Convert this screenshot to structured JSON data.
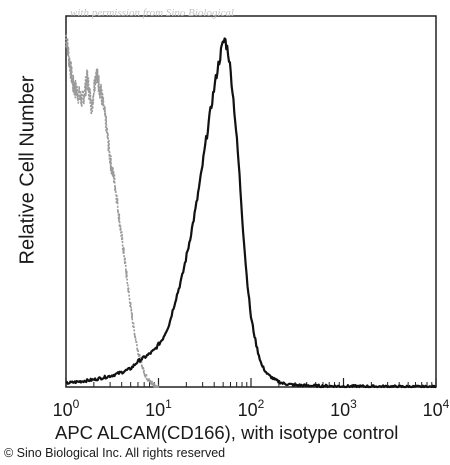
{
  "watermark": "with permission from Sino Biological",
  "copyright": "© Sino Biological Inc. All rights reserved",
  "chart_data": {
    "type": "line",
    "title": "",
    "xlabel": "APC ALCAM(CD166), with isotype control",
    "ylabel": "Relative Cell Number",
    "xscale": "log",
    "xlim": [
      1,
      10000
    ],
    "ylim": [
      0,
      100
    ],
    "xticks": [
      {
        "value": 1,
        "base": "10",
        "exp": "0"
      },
      {
        "value": 10,
        "base": "10",
        "exp": "1"
      },
      {
        "value": 100,
        "base": "10",
        "exp": "2"
      },
      {
        "value": 1000,
        "base": "10",
        "exp": "3"
      },
      {
        "value": 10000,
        "base": "10",
        "exp": "4"
      }
    ],
    "grid": false,
    "legend": "none",
    "series": [
      {
        "role": "isotype control",
        "color": "#9a9a9a",
        "x": [
          1.0,
          1.1,
          1.2,
          1.35,
          1.5,
          1.7,
          1.9,
          2.1,
          2.4,
          2.7,
          3.0,
          3.4,
          3.8,
          4.3,
          4.8,
          5.4,
          6.1,
          7.0,
          8.0,
          9.0,
          10.0
        ],
        "y": [
          96,
          88,
          82,
          80,
          78,
          84,
          76,
          86,
          80,
          72,
          62,
          55,
          45,
          35,
          25,
          16,
          9,
          4,
          1.5,
          0.5,
          0
        ]
      },
      {
        "role": "ALCAM(CD166)",
        "color": "#111111",
        "x": [
          1.0,
          2.0,
          3.0,
          4.0,
          5.0,
          6.0,
          7.5,
          9.0,
          11,
          13,
          15,
          18,
          21,
          25,
          29,
          33,
          38,
          43,
          48,
          52,
          57,
          62,
          68,
          75,
          82,
          90,
          100,
          115,
          130,
          150,
          180,
          220,
          300,
          500,
          1000,
          10000
        ],
        "y": [
          1,
          2,
          3,
          4,
          5,
          7,
          8.5,
          10,
          13,
          17,
          23,
          30,
          38,
          48,
          58,
          68,
          78,
          86,
          92,
          95,
          91,
          83,
          72,
          58,
          43,
          30,
          19,
          11,
          6,
          3.5,
          2,
          1,
          0.5,
          0.3,
          0.2,
          0
        ]
      }
    ]
  }
}
